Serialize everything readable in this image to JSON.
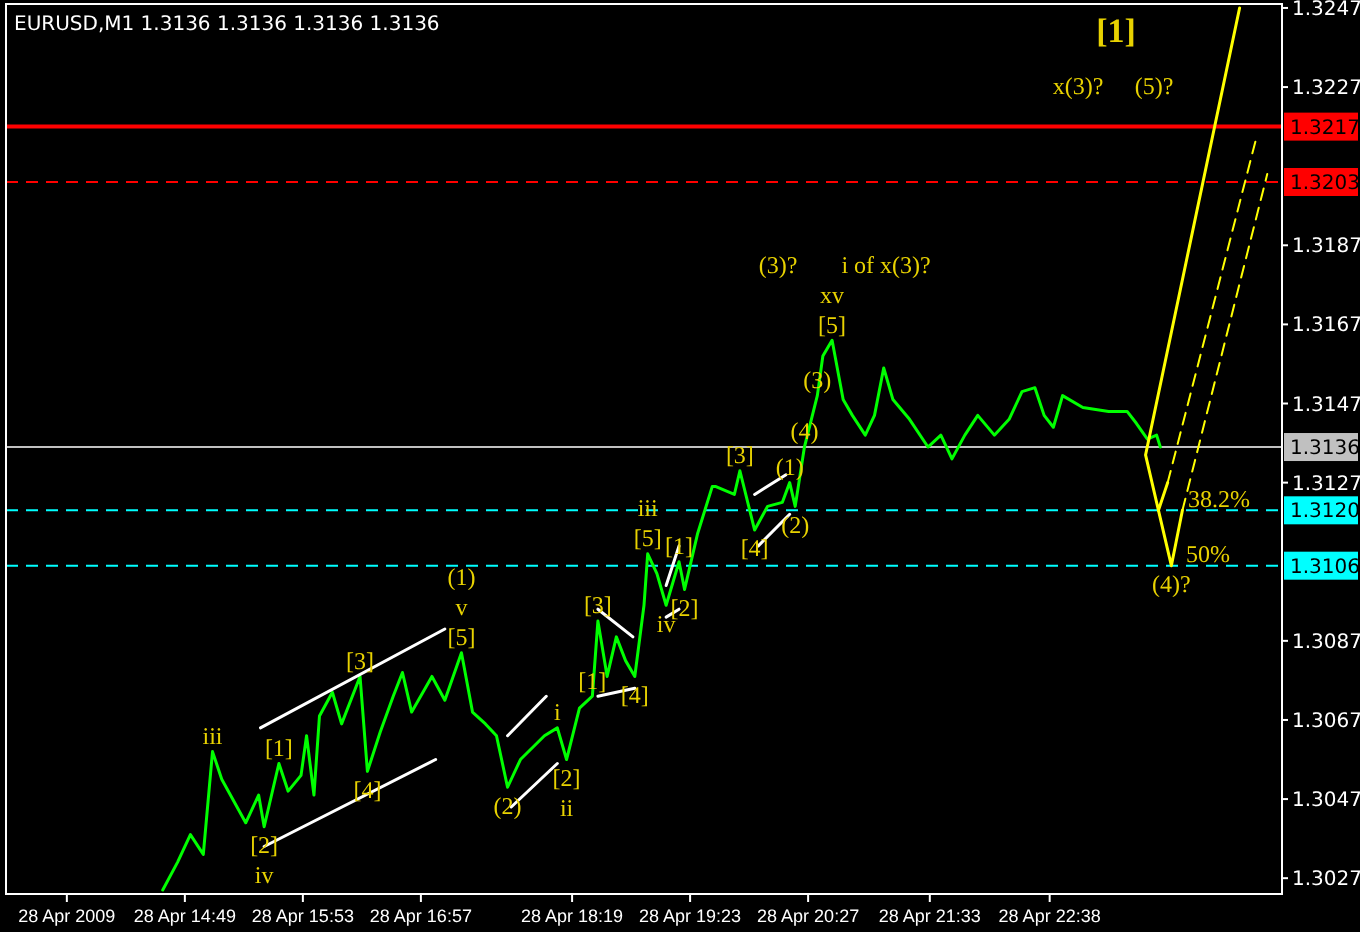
{
  "chart_data": {
    "type": "line",
    "title": "EURUSD,M1  1.3136 1.3136 1.3136 1.3136",
    "xlim": [
      "2009-04-28T13:12",
      "2009-04-29T00:44"
    ],
    "ylim": [
      1.3023,
      1.3248
    ],
    "xticks": [
      {
        "value": "2009-04-28T13:45",
        "label": "28 Apr 2009"
      },
      {
        "value": "2009-04-28T14:49",
        "label": "28 Apr 14:49"
      },
      {
        "value": "2009-04-28T15:53",
        "label": "28 Apr 15:53"
      },
      {
        "value": "2009-04-28T16:57",
        "label": "28 Apr 16:57"
      },
      {
        "value": "2009-04-28T18:19",
        "label": "28 Apr 18:19"
      },
      {
        "value": "2009-04-28T19:23",
        "label": "28 Apr 19:23"
      },
      {
        "value": "2009-04-28T20:27",
        "label": "28 Apr 20:27"
      },
      {
        "value": "2009-04-28T21:33",
        "label": "28 Apr 21:33"
      },
      {
        "value": "2009-04-28T22:38",
        "label": "28 Apr 22:38"
      }
    ],
    "yticks": [
      1.3027,
      1.3047,
      1.3067,
      1.3087,
      1.3127,
      1.3147,
      1.3167,
      1.3187,
      1.3227,
      1.3247
    ],
    "marker": "none",
    "series": [
      {
        "color": "#00ff00",
        "line_style": "solid",
        "x": [
          "2009-04-28T14:37",
          "2009-04-28T14:45",
          "2009-04-28T14:52",
          "2009-04-28T14:59",
          "2009-04-28T15:04",
          "2009-04-28T15:09",
          "2009-04-28T15:22",
          "2009-04-28T15:29",
          "2009-04-28T15:32",
          "2009-04-28T15:40",
          "2009-04-28T15:45",
          "2009-04-28T15:52",
          "2009-04-28T15:55",
          "2009-04-28T15:59",
          "2009-04-28T16:02",
          "2009-04-28T16:09",
          "2009-04-28T16:14",
          "2009-04-28T16:24",
          "2009-04-28T16:28",
          "2009-04-28T16:35",
          "2009-04-28T16:42",
          "2009-04-28T16:47",
          "2009-04-28T16:52",
          "2009-04-28T17:03",
          "2009-04-28T17:10",
          "2009-04-28T17:19",
          "2009-04-28T17:25",
          "2009-04-28T17:32",
          "2009-04-28T17:38",
          "2009-04-28T17:44",
          "2009-04-28T17:51",
          "2009-04-28T18:04",
          "2009-04-28T18:11",
          "2009-04-28T18:16",
          "2009-04-28T18:23",
          "2009-04-28T18:30",
          "2009-04-28T18:33",
          "2009-04-28T18:38",
          "2009-04-28T18:43",
          "2009-04-28T18:48",
          "2009-04-28T18:53",
          "2009-04-28T18:58",
          "2009-04-28T19:00",
          "2009-04-28T19:05",
          "2009-04-28T19:10",
          "2009-04-28T19:17",
          "2009-04-28T19:20",
          "2009-04-28T19:27",
          "2009-04-28T19:35",
          "2009-04-28T19:37",
          "2009-04-28T19:47",
          "2009-04-28T19:50",
          "2009-04-28T19:58",
          "2009-04-28T20:05",
          "2009-04-28T20:13",
          "2009-04-28T20:17",
          "2009-04-28T20:20",
          "2009-04-28T20:25",
          "2009-04-28T20:32",
          "2009-04-28T20:35",
          "2009-04-28T20:40",
          "2009-04-28T20:46",
          "2009-04-28T20:51",
          "2009-04-28T20:58",
          "2009-04-28T21:03",
          "2009-04-28T21:08",
          "2009-04-28T21:13",
          "2009-04-28T21:22",
          "2009-04-28T21:32",
          "2009-04-28T21:39",
          "2009-04-28T21:45",
          "2009-04-28T21:52",
          "2009-04-28T21:59",
          "2009-04-28T22:08",
          "2009-04-28T22:16",
          "2009-04-28T22:23",
          "2009-04-28T22:30",
          "2009-04-28T22:35",
          "2009-04-28T22:40",
          "2009-04-28T22:45",
          "2009-04-28T22:56",
          "2009-04-28T23:10",
          "2009-04-28T23:20",
          "2009-04-28T23:25",
          "2009-04-28T23:31",
          "2009-04-28T23:36",
          "2009-04-28T23:38"
        ],
        "values": [
          1.3024,
          1.3031,
          1.3038,
          1.3033,
          1.3059,
          1.3052,
          1.3041,
          1.3048,
          1.304,
          1.3056,
          1.3049,
          1.3053,
          1.3063,
          1.3048,
          1.3068,
          1.3074,
          1.3066,
          1.3078,
          1.3054,
          1.3064,
          1.3073,
          1.3079,
          1.3069,
          1.3078,
          1.3072,
          1.3084,
          1.3069,
          1.3066,
          1.3063,
          1.305,
          1.3057,
          1.3063,
          1.3065,
          1.3057,
          1.307,
          1.3073,
          1.3092,
          1.3078,
          1.3088,
          1.3082,
          1.3078,
          1.3096,
          1.3109,
          1.3104,
          1.3096,
          1.3107,
          1.31,
          1.3114,
          1.3126,
          1.3126,
          1.3124,
          1.313,
          1.3115,
          1.3121,
          1.3122,
          1.3127,
          1.3121,
          1.3136,
          1.3149,
          1.3159,
          1.3163,
          1.3148,
          1.3144,
          1.3139,
          1.3144,
          1.3156,
          1.3148,
          1.3143,
          1.3136,
          1.3139,
          1.3133,
          1.3139,
          1.3144,
          1.3139,
          1.3143,
          1.315,
          1.3151,
          1.3144,
          1.3141,
          1.3149,
          1.3146,
          1.3145,
          1.3145,
          1.3142,
          1.3138,
          1.3139,
          1.3136
        ]
      },
      {
        "color": "#ffff00",
        "line_style": "solid",
        "x": [
          "2009-04-29T00:21",
          "2009-04-28T23:30",
          "2009-04-28T23:37",
          "2009-04-28T23:42"
        ],
        "values": [
          1.3247,
          1.3134,
          1.312,
          1.3127
        ]
      },
      {
        "color": "#ffff00",
        "line_style": "dashed",
        "x": [
          "2009-04-28T23:42",
          "2009-04-29T00:30"
        ],
        "values": [
          1.3127,
          1.3214
        ]
      },
      {
        "color": "#ffff00",
        "line_style": "solid",
        "x": [
          "2009-04-28T23:37",
          "2009-04-28T23:44",
          "2009-04-28T23:50"
        ],
        "values": [
          1.312,
          1.3106,
          1.312
        ]
      },
      {
        "color": "#ffff00",
        "line_style": "dashed",
        "x": [
          "2009-04-28T23:50",
          "2009-04-29T00:36"
        ],
        "values": [
          1.312,
          1.3205
        ]
      },
      {
        "color": "#ffffff",
        "line_style": "solid",
        "x": [
          "2009-04-28T15:30",
          "2009-04-28T17:10"
        ],
        "values": [
          1.3065,
          1.309
        ]
      },
      {
        "color": "#ffffff",
        "line_style": "solid",
        "x": [
          "2009-04-28T15:32",
          "2009-04-28T17:05"
        ],
        "values": [
          1.3035,
          1.3057
        ]
      },
      {
        "color": "#ffffff",
        "line_style": "solid",
        "x": [
          "2009-04-28T17:44",
          "2009-04-28T18:05"
        ],
        "values": [
          1.3063,
          1.3073
        ]
      },
      {
        "color": "#ffffff",
        "line_style": "solid",
        "x": [
          "2009-04-28T17:46",
          "2009-04-28T18:11"
        ],
        "values": [
          1.3045,
          1.3056
        ]
      },
      {
        "color": "#ffffff",
        "line_style": "solid",
        "x": [
          "2009-04-28T18:33",
          "2009-04-28T18:52"
        ],
        "values": [
          1.3095,
          1.3088
        ]
      },
      {
        "color": "#ffffff",
        "line_style": "solid",
        "x": [
          "2009-04-28T18:33",
          "2009-04-28T18:53"
        ],
        "values": [
          1.3073,
          1.3075
        ]
      },
      {
        "color": "#ffffff",
        "line_style": "solid",
        "x": [
          "2009-04-28T19:10",
          "2009-04-28T19:17"
        ],
        "values": [
          1.3101,
          1.3111
        ]
      },
      {
        "color": "#ffffff",
        "line_style": "solid",
        "x": [
          "2009-04-28T19:10",
          "2009-04-28T19:17"
        ],
        "values": [
          1.3093,
          1.3095
        ]
      },
      {
        "color": "#ffffff",
        "line_style": "solid",
        "x": [
          "2009-04-28T19:58",
          "2009-04-28T20:15"
        ],
        "values": [
          1.3124,
          1.3129
        ]
      },
      {
        "color": "#ffffff",
        "line_style": "solid",
        "x": [
          "2009-04-28T20:00",
          "2009-04-28T20:17"
        ],
        "values": [
          1.3111,
          1.3119
        ]
      }
    ],
    "ref_lines": [
      {
        "axis": "y",
        "value": 1.3217,
        "label": "1.3217",
        "color": "#ff0000",
        "line_style": "solid"
      },
      {
        "axis": "y",
        "value": 1.3203,
        "label": "1.3203",
        "color": "#ff0000",
        "line_style": "dashed"
      },
      {
        "axis": "y",
        "value": 1.3136,
        "label": "1.3136",
        "color": "#c0c0c0",
        "line_style": "solid"
      },
      {
        "axis": "y",
        "value": 1.312,
        "label": "1.3120",
        "color": "#00ffff",
        "line_style": "dashed"
      },
      {
        "axis": "y",
        "value": 1.3106,
        "label": "1.3106",
        "color": "#00ffff",
        "line_style": "dashed"
      }
    ],
    "annotations": [
      "[1]",
      "x(3)?",
      "(5)?",
      {
        "text": "iii",
        "x": "2009-04-28T15:04",
        "y": 1.3059
      },
      {
        "text": "[2]",
        "x": "2009-04-28T15:32",
        "y": 1.304
      },
      "iv",
      {
        "text": "[1]",
        "x": "2009-04-28T15:40",
        "y": 1.3056
      },
      {
        "text": "[3]",
        "x": "2009-04-28T16:24",
        "y": 1.3078
      },
      {
        "text": "[4]",
        "x": "2009-04-28T16:28",
        "y": 1.3054
      },
      {
        "text": "[5]",
        "x": "2009-04-28T17:19",
        "y": 1.3084
      },
      "v",
      "(1)",
      {
        "text": "(2)",
        "x": "2009-04-28T17:44",
        "y": 1.305
      },
      {
        "text": "i",
        "x": "2009-04-28T18:11",
        "y": 1.3065
      },
      {
        "text": "[2]",
        "x": "2009-04-28T18:16",
        "y": 1.3057
      },
      "ii",
      {
        "text": "[1]",
        "x": "2009-04-28T18:30",
        "y": 1.3073
      },
      {
        "text": "[3]",
        "x": "2009-04-28T18:33",
        "y": 1.3092
      },
      {
        "text": "[4]",
        "x": "2009-04-28T18:53",
        "y": 1.3078
      },
      {
        "text": "[5]",
        "x": "2009-04-28T19:00",
        "y": 1.3109
      },
      "iii",
      {
        "text": "iv",
        "x": "2009-04-28T19:10",
        "y": 1.3096
      },
      {
        "text": "[1]",
        "x": "2009-04-28T19:17",
        "y": 1.3107
      },
      {
        "text": "[2]",
        "x": "2009-04-28T19:20",
        "y": 1.31
      },
      {
        "text": "[3]",
        "x": "2009-04-28T19:50",
        "y": 1.313
      },
      {
        "text": "[4]",
        "x": "2009-04-28T19:58",
        "y": 1.3115
      },
      {
        "text": "(1)",
        "x": "2009-04-28T20:17",
        "y": 1.3127
      },
      {
        "text": "(2)",
        "x": "2009-04-28T20:20",
        "y": 1.3121
      },
      {
        "text": "(4)",
        "x": "2009-04-28T20:25",
        "y": 1.3136
      },
      {
        "text": "(3)",
        "x": "2009-04-28T20:32",
        "y": 1.3149
      },
      {
        "text": "[5]",
        "x": "2009-04-28T20:40",
        "y": 1.3163
      },
      "xv",
      "(3)?",
      "i of x(3)?",
      {
        "text": "(4)?",
        "x": "2009-04-28T23:44",
        "y": 1.3106
      },
      {
        "text": "38.2%",
        "x": "2009-04-28T23:53",
        "y": 1.312
      },
      {
        "text": "50%",
        "x": "2009-04-28T23:52",
        "y": 1.3106
      }
    ]
  }
}
